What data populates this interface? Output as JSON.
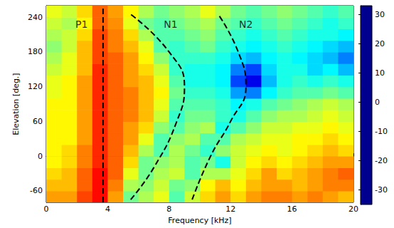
{
  "chart_data": {
    "type": "heatmap",
    "xlabel": "Frequency [kHz]",
    "ylabel": "Elevation [deg.]",
    "xlim": [
      0,
      20
    ],
    "xticks": [
      0,
      4,
      8,
      12,
      16,
      20
    ],
    "ylim": [
      -80,
      260
    ],
    "yticks": [
      -60,
      0,
      60,
      120,
      180,
      240
    ],
    "grid": false,
    "cells": {
      "x": [
        0.5,
        1.5,
        2.5,
        3.5,
        4.5,
        5.5,
        6.5,
        7.5,
        8.5,
        9.5,
        10.5,
        11.5,
        12.5,
        13.5,
        14.5,
        15.5,
        16.5,
        17.5,
        18.5,
        19.5
      ],
      "y": [
        -70,
        -50,
        -30,
        -10,
        10,
        30,
        50,
        70,
        90,
        110,
        130,
        150,
        170,
        190,
        210,
        230,
        250
      ],
      "values": [
        [
          14,
          14,
          20,
          24,
          14,
          -2,
          2,
          6,
          -4,
          4,
          10,
          14,
          10,
          14,
          16,
          16,
          14,
          16,
          14,
          12
        ],
        [
          12,
          12,
          18,
          24,
          16,
          2,
          0,
          4,
          -2,
          0,
          8,
          12,
          8,
          12,
          14,
          14,
          12,
          14,
          16,
          16
        ],
        [
          10,
          12,
          18,
          24,
          18,
          6,
          -2,
          2,
          4,
          -4,
          2,
          2,
          6,
          10,
          14,
          10,
          12,
          14,
          16,
          18
        ],
        [
          8,
          10,
          16,
          22,
          18,
          10,
          -2,
          0,
          2,
          -4,
          -2,
          -8,
          4,
          8,
          10,
          8,
          10,
          12,
          14,
          14
        ],
        [
          8,
          10,
          16,
          22,
          18,
          12,
          2,
          -4,
          2,
          -2,
          -6,
          0,
          4,
          6,
          8,
          6,
          8,
          10,
          12,
          10
        ],
        [
          8,
          8,
          14,
          22,
          18,
          14,
          6,
          -4,
          0,
          2,
          -4,
          -4,
          2,
          4,
          6,
          6,
          8,
          8,
          10,
          8
        ],
        [
          8,
          8,
          14,
          22,
          18,
          14,
          10,
          0,
          -4,
          0,
          2,
          -8,
          -4,
          0,
          4,
          4,
          6,
          6,
          8,
          6
        ],
        [
          8,
          8,
          14,
          22,
          18,
          16,
          12,
          4,
          -6,
          -2,
          -2,
          -6,
          -8,
          -4,
          0,
          2,
          2,
          4,
          6,
          4
        ],
        [
          8,
          8,
          14,
          22,
          18,
          16,
          12,
          6,
          -4,
          -4,
          -4,
          -6,
          -10,
          -8,
          -4,
          -2,
          0,
          2,
          4,
          2
        ],
        [
          6,
          8,
          14,
          22,
          18,
          16,
          12,
          8,
          -2,
          -6,
          -6,
          -8,
          -16,
          -18,
          -10,
          -6,
          -4,
          -4,
          -2,
          -4
        ],
        [
          6,
          8,
          14,
          22,
          18,
          14,
          12,
          6,
          -4,
          -8,
          -8,
          -10,
          -22,
          -28,
          -14,
          -8,
          -6,
          -8,
          -6,
          -8
        ],
        [
          4,
          6,
          12,
          22,
          18,
          14,
          10,
          4,
          -6,
          -8,
          -8,
          -10,
          -18,
          -22,
          -12,
          -8,
          -8,
          -12,
          -10,
          -14
        ],
        [
          2,
          6,
          12,
          20,
          18,
          14,
          8,
          0,
          -6,
          -6,
          -6,
          -8,
          -12,
          -14,
          -10,
          -8,
          -10,
          -12,
          -14,
          -18
        ],
        [
          0,
          4,
          12,
          20,
          16,
          12,
          6,
          -4,
          -6,
          -4,
          -2,
          -6,
          -8,
          -10,
          -8,
          -6,
          -8,
          -10,
          -12,
          -14
        ],
        [
          2,
          4,
          10,
          20,
          16,
          10,
          2,
          -4,
          -4,
          -2,
          0,
          -4,
          -6,
          -8,
          -6,
          -4,
          -6,
          -8,
          -8,
          -10
        ],
        [
          4,
          2,
          8,
          18,
          15,
          6,
          -2,
          -4,
          -2,
          0,
          2,
          -2,
          -4,
          -6,
          -4,
          -2,
          -4,
          -6,
          -8,
          -6
        ],
        [
          6,
          4,
          10,
          18,
          14,
          8,
          2,
          -2,
          0,
          2,
          6,
          2,
          -2,
          -4,
          -2,
          0,
          -2,
          -4,
          -6,
          -4
        ]
      ]
    },
    "colorbar": {
      "range": [
        -35,
        33
      ],
      "ticks": [
        -30,
        -20,
        -10,
        0,
        10,
        20,
        30
      ]
    },
    "curves": [
      {
        "label": "P1",
        "label_x": 2.3,
        "label_y": 228,
        "line_style": "dashed",
        "color": "#000000",
        "x": [
          3.7,
          3.7
        ],
        "y": [
          -80,
          260
        ]
      },
      {
        "label": "N1",
        "label_x": 8.1,
        "label_y": 228,
        "line_style": "dashed",
        "color": "#000000",
        "x": [
          5.5,
          7.0,
          8.5,
          9.0,
          8.0,
          5.5
        ],
        "y": [
          -75,
          -20,
          60,
          120,
          180,
          245
        ]
      },
      {
        "label": "N2",
        "label_x": 13.0,
        "label_y": 228,
        "line_style": "dashed",
        "color": "#000000",
        "x": [
          9.5,
          10.7,
          12.0,
          13.0,
          12.5,
          11.2
        ],
        "y": [
          -75,
          0,
          60,
          120,
          180,
          245
        ]
      }
    ]
  }
}
